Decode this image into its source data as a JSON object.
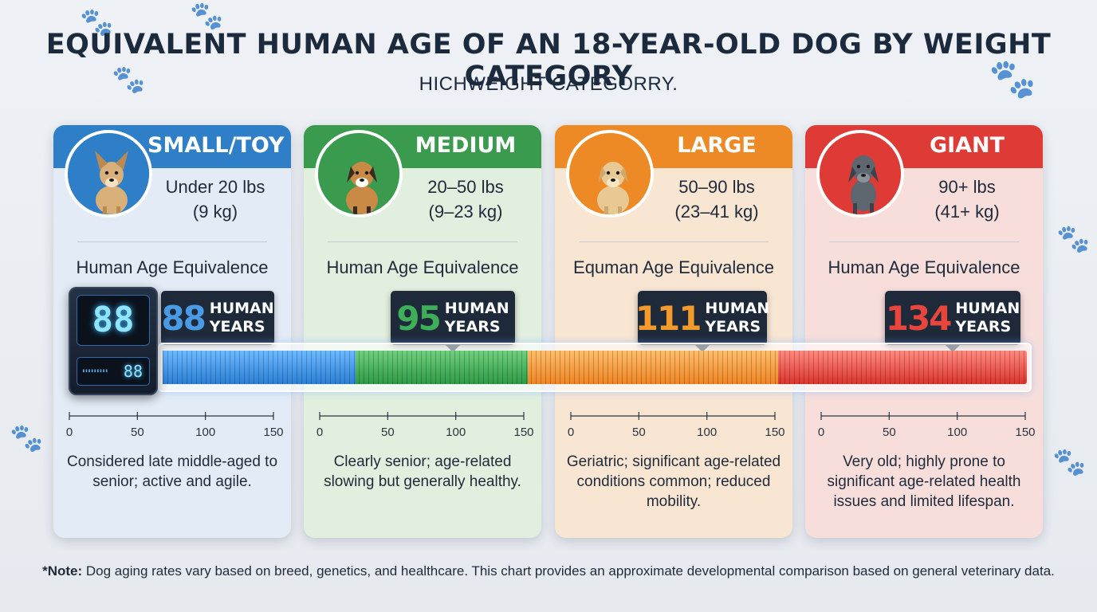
{
  "title": "EQUIVALENT HUMAN AGE OF AN 18-YEAR-OLD DOG BY WEIGHT CATEGORY",
  "subtitle": "HICHWEIGHT CATEGORRY.",
  "digital_display": {
    "main": "88",
    "sub": "88"
  },
  "cards": [
    {
      "name": "SMALL/TOY",
      "weight_lbs": "Under 20 lbs",
      "weight_kg": "(9 kg)",
      "equiv_label": "Human Age Equivalence",
      "age": "88",
      "unit_line1": "HUMAN",
      "unit_line2": "YEARS",
      "desc": "Considered late middle-aged to senior; active and agile.",
      "color": "#2f7fc8",
      "bg": "#e3ecf6",
      "num_color": "#4a9be6",
      "dog": "chihuahua"
    },
    {
      "name": "MEDIUM",
      "weight_lbs": "20–50 lbs",
      "weight_kg": "(9–23 kg)",
      "equiv_label": "Human Age Equivalence",
      "age": "95",
      "unit_line1": "HUMAN",
      "unit_line2": "YEARS",
      "desc": "Clearly senior; age-related slowing but generally healthy.",
      "color": "#3a9a4e",
      "bg": "#e1efdf",
      "num_color": "#3fae58",
      "dog": "beagle"
    },
    {
      "name": "LARGE",
      "weight_lbs": "50–90 lbs",
      "weight_kg": "(23–41 kg)",
      "equiv_label": "Equman Age Equivalence",
      "age": "111",
      "unit_line1": "HUMAN",
      "unit_line2": "YEARS",
      "desc": "Geriatric; significant age-related conditions common; reduced mobility.",
      "color": "#ee8a26",
      "bg": "#f8e6d3",
      "num_color": "#f39a2c",
      "dog": "labrador"
    },
    {
      "name": "GIANT",
      "weight_lbs": "90+ lbs",
      "weight_kg": "(41+ kg)",
      "equiv_label": "Human Age Equivalence",
      "age": "134",
      "unit_line1": "HUMAN",
      "unit_line2": "YEARS",
      "desc": "Very old; highly prone to significant age-related health issues and limited lifespan.",
      "color": "#de3b36",
      "bg": "#f8dedb",
      "num_color": "#e8453c",
      "dog": "great-dane"
    }
  ],
  "note": {
    "label": "*Note:",
    "text": " Dog aging rates vary based on breed, genetics, and healthcare. This chart provides an approximate developmental comparison based on general veterinary data."
  },
  "chart_data": {
    "type": "bar",
    "title": "EQUIVALENT HUMAN AGE OF AN 18-YEAR-OLD DOG BY WEIGHT CATEGORY",
    "categories": [
      "SMALL/TOY",
      "MEDIUM",
      "LARGE",
      "GIANT"
    ],
    "values": [
      88,
      95,
      111,
      134
    ],
    "unit": "HUMAN YEARS",
    "axis_ticks": [
      "0",
      "50",
      "100",
      "150"
    ],
    "tick_values": [
      0,
      50,
      100,
      150
    ],
    "xlim": [
      0,
      150
    ]
  }
}
